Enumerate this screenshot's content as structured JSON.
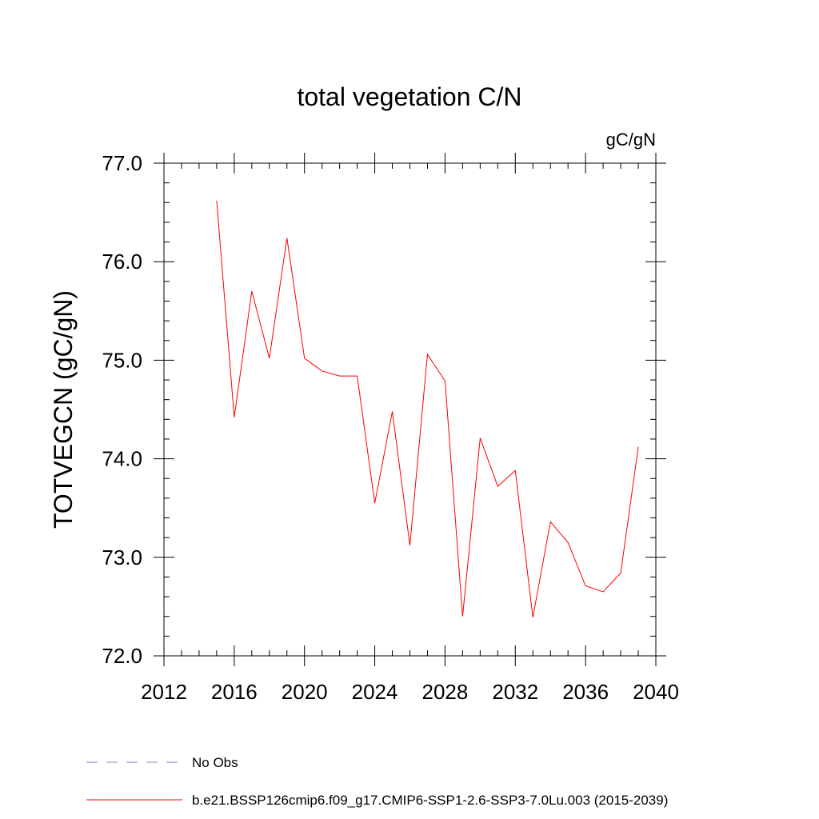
{
  "chart_data": {
    "type": "line",
    "title": "total vegetation C/N",
    "units_label": "gC/gN",
    "ylabel": "TOTVEGCN  (gC/gN)",
    "xlabel": "",
    "xlim": [
      2012,
      2040
    ],
    "ylim": [
      72.0,
      77.0
    ],
    "x_major_ticks": [
      2012,
      2016,
      2020,
      2024,
      2028,
      2032,
      2036,
      2040
    ],
    "x_tick_labels": [
      "2012",
      "2016",
      "2020",
      "2024",
      "2028",
      "2032",
      "2036",
      "2040"
    ],
    "x_minor_step": 1,
    "y_major_ticks": [
      72.0,
      73.0,
      74.0,
      75.0,
      76.0,
      77.0
    ],
    "y_tick_labels": [
      "72.0",
      "73.0",
      "74.0",
      "75.0",
      "76.0",
      "77.0"
    ],
    "y_minor_step": 0.2,
    "grid": false,
    "series": [
      {
        "name": "b.e21.BSSP126cmip6.f09_g17.CMIP6-SSP1-2.6-SSP3-7.0Lu.003 (2015-2039)",
        "color": "#ff0000",
        "x": [
          2015,
          2016,
          2017,
          2018,
          2019,
          2020,
          2021,
          2022,
          2023,
          2024,
          2025,
          2026,
          2027,
          2028,
          2029,
          2030,
          2031,
          2032,
          2033,
          2034,
          2035,
          2036,
          2037,
          2038,
          2039
        ],
        "values": [
          76.62,
          74.42,
          75.7,
          75.02,
          76.24,
          75.02,
          74.89,
          74.84,
          74.84,
          73.55,
          74.48,
          73.12,
          75.06,
          74.79,
          72.4,
          74.21,
          73.72,
          73.88,
          72.39,
          73.36,
          73.15,
          72.71,
          72.65,
          72.84,
          74.12
        ]
      }
    ],
    "legend": [
      {
        "label": "No Obs",
        "style": "dashed",
        "color": "#8a7fd0"
      },
      {
        "label": "b.e21.BSSP126cmip6.f09_g17.CMIP6-SSP1-2.6-SSP3-7.0Lu.003 (2015-2039)",
        "style": "solid",
        "color": "#ff0000"
      }
    ],
    "legend_position": "bottom-left"
  }
}
